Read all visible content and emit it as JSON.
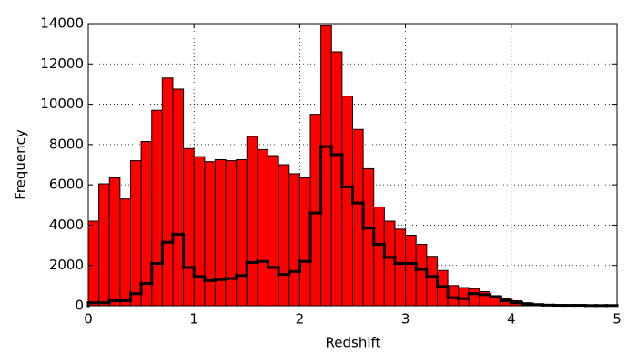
{
  "chart_data": {
    "type": "histogram",
    "xlabel": "Redshift",
    "ylabel": "Frequency",
    "bins": [
      0,
      0.1,
      0.2,
      0.3,
      0.4,
      0.5,
      0.6,
      0.7,
      0.8,
      0.9,
      1,
      1.1,
      1.2,
      1.3,
      1.4,
      1.5,
      1.6,
      1.7,
      1.8,
      1.9,
      2,
      2.1,
      2.2,
      2.3,
      2.4,
      2.5,
      2.6,
      2.7,
      2.8,
      2.9,
      3,
      3.1,
      3.2,
      3.3,
      3.4,
      3.5,
      3.6,
      3.7,
      3.8,
      3.9,
      4,
      4.1,
      4.2,
      4.3,
      4.4,
      4.5,
      4.6,
      4.7,
      4.8,
      4.9,
      5
    ],
    "series": [
      {
        "color": "#ff0000",
        "histtype": "bar",
        "values": [
          4200,
          6050,
          6350,
          5300,
          7200,
          8150,
          9700,
          11300,
          10750,
          7800,
          7400,
          7150,
          7250,
          7200,
          7250,
          8400,
          7750,
          7450,
          7000,
          6550,
          6350,
          9500,
          13900,
          12600,
          10400,
          8750,
          6800,
          4900,
          4200,
          3800,
          3500,
          3050,
          2450,
          1750,
          1000,
          900,
          850,
          700,
          500,
          350,
          250,
          150,
          100,
          60,
          50,
          40,
          30,
          30,
          20,
          10
        ]
      },
      {
        "color": "#000000",
        "histtype": "step",
        "values": [
          150,
          150,
          250,
          250,
          600,
          1100,
          2100,
          3150,
          3550,
          1900,
          1450,
          1250,
          1300,
          1350,
          1500,
          2150,
          2200,
          1900,
          1550,
          1700,
          2200,
          4600,
          7900,
          7500,
          5900,
          5100,
          3850,
          3050,
          2400,
          2100,
          2100,
          1800,
          1450,
          950,
          400,
          350,
          600,
          550,
          450,
          250,
          150,
          80,
          50,
          30,
          20,
          20,
          20,
          10,
          10,
          10
        ]
      }
    ],
    "xlim": [
      0,
      5
    ],
    "xticks": [
      0,
      1,
      2,
      3,
      4,
      5
    ],
    "ylim": [
      0,
      14000
    ],
    "yticks": [
      0,
      2000,
      4000,
      6000,
      8000,
      10000,
      12000,
      14000
    ],
    "grid": true
  }
}
